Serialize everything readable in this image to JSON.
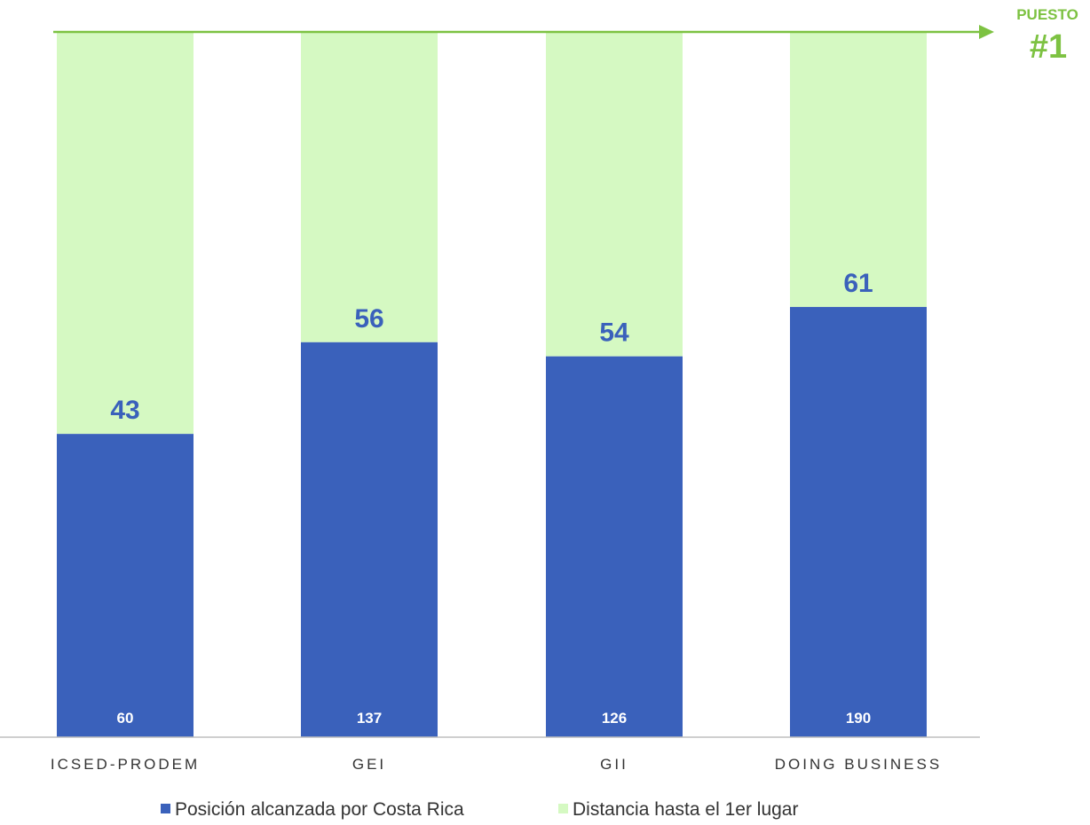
{
  "chart_data": {
    "type": "bar",
    "stacked": true,
    "orientation": "vertical",
    "categories": [
      "ICSED-PRODEM",
      "GEI",
      "GII",
      "DOING BUSINESS"
    ],
    "series": [
      {
        "name": "Posición alcanzada por Costa Rica",
        "color": "#3a61bb",
        "values": [
          43,
          56,
          54,
          61
        ]
      },
      {
        "name": "Distancia hasta el 1er lugar",
        "color": "#d5f9c2",
        "values": [
          57,
          44,
          46,
          39
        ]
      }
    ],
    "ranking_positions": [
      60,
      137,
      126,
      190
    ],
    "ylim": [
      0,
      100
    ],
    "grid": false,
    "legend_position": "bottom",
    "target_marker": {
      "line1": "PUESTO",
      "line2": "#1",
      "color": "#7dc242"
    },
    "text_color_values": "#3a61bb",
    "axis_color": "#bfbfbf"
  }
}
